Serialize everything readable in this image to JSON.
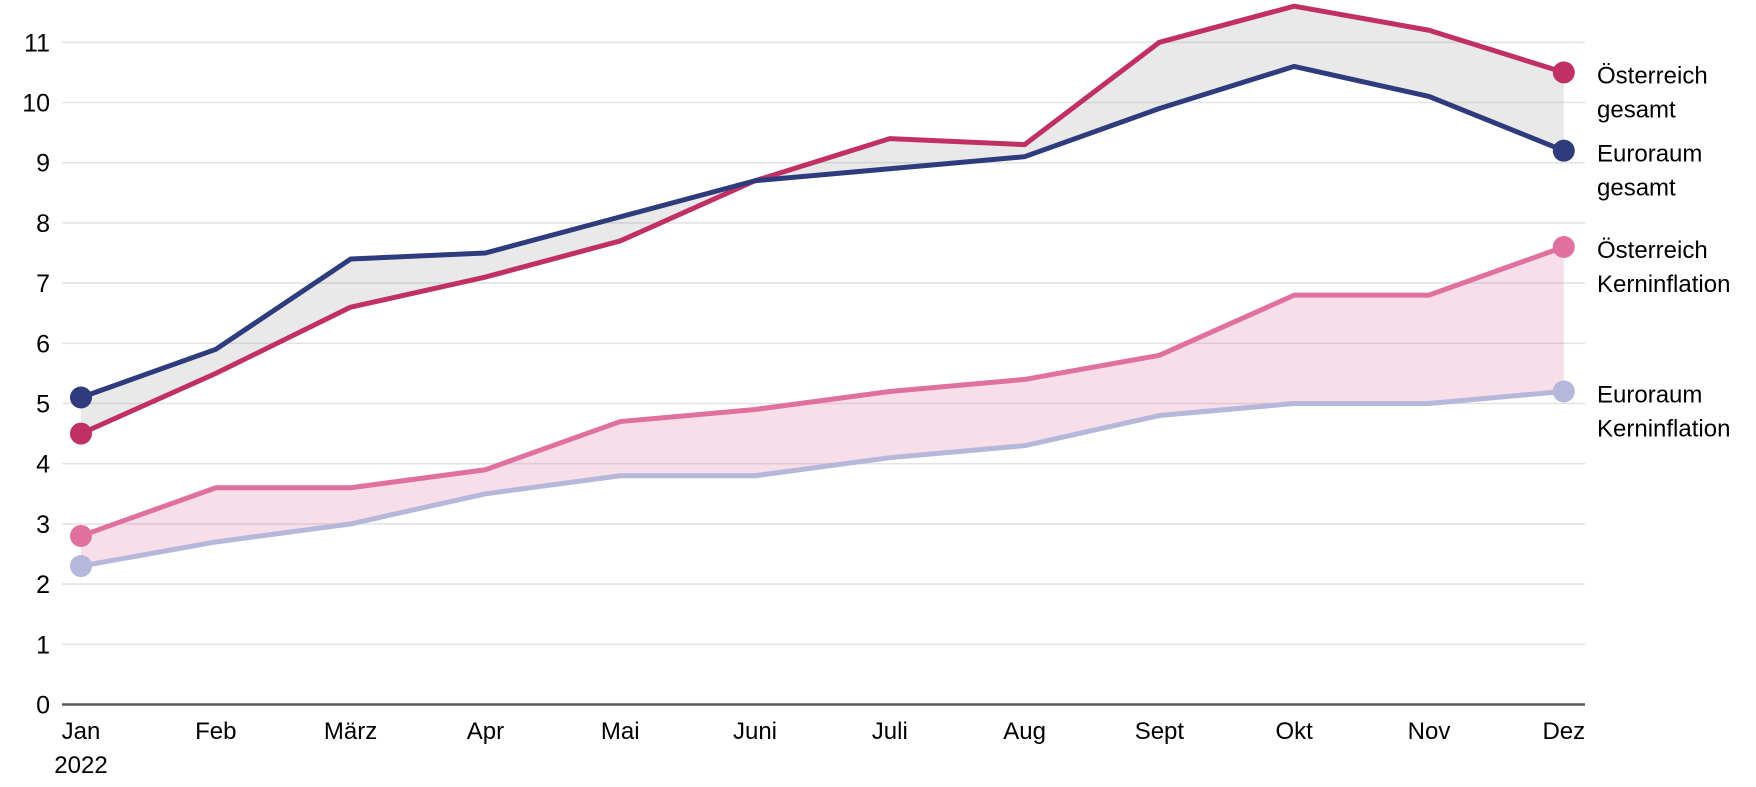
{
  "chart_data": {
    "type": "line",
    "title": "",
    "x_categories": [
      "Jan",
      "Feb",
      "März",
      "Apr",
      "Mai",
      "Juni",
      "Juli",
      "Aug",
      "Sept",
      "Okt",
      "Nov",
      "Dez"
    ],
    "x_first_sub_label": "2022",
    "ylim": [
      0,
      11
    ],
    "y_ticks": [
      0,
      1,
      2,
      3,
      4,
      5,
      6,
      7,
      8,
      9,
      10,
      11
    ],
    "grid": "horizontal",
    "legend_position": "right-of-line-ends",
    "markers": "first-and-last-point",
    "colors": {
      "gridline": "#e3e3e3",
      "axis_line": "#595959",
      "text": "#000000"
    },
    "series": [
      {
        "name": "Österreich gesamt",
        "label_lines": [
          "Österreich",
          "gesamt"
        ],
        "color": "#c13065",
        "values": [
          4.5,
          5.5,
          6.6,
          7.1,
          7.7,
          8.7,
          9.4,
          9.3,
          11.0,
          11.6,
          11.2,
          10.5
        ]
      },
      {
        "name": "Euroraum gesamt",
        "label_lines": [
          "Euroraum",
          "gesamt"
        ],
        "color": "#2e3c7e",
        "values": [
          5.1,
          5.9,
          7.4,
          7.5,
          8.1,
          8.7,
          8.9,
          9.1,
          9.9,
          10.6,
          10.1,
          9.2
        ]
      },
      {
        "name": "Österreich Kerninflation",
        "label_lines": [
          "Österreich",
          "Kerninflation"
        ],
        "color": "#e0719f",
        "values": [
          2.8,
          3.6,
          3.6,
          3.9,
          4.7,
          4.9,
          5.2,
          5.4,
          5.8,
          6.8,
          6.8,
          7.6
        ]
      },
      {
        "name": "Euroraum Kerninflation",
        "label_lines": [
          "Euroraum",
          "Kerninflation"
        ],
        "color": "#b5b7db",
        "values": [
          2.3,
          2.7,
          3.0,
          3.5,
          3.8,
          3.8,
          4.1,
          4.3,
          4.8,
          5.0,
          5.0,
          5.2
        ]
      }
    ],
    "bands": [
      {
        "name": "band-gesamt",
        "between": [
          0,
          1
        ],
        "fill": "#999999",
        "opacity": 0.22
      },
      {
        "name": "band-kerninflation",
        "between": [
          2,
          3
        ],
        "fill": "#e0719f",
        "opacity": 0.23
      }
    ]
  }
}
